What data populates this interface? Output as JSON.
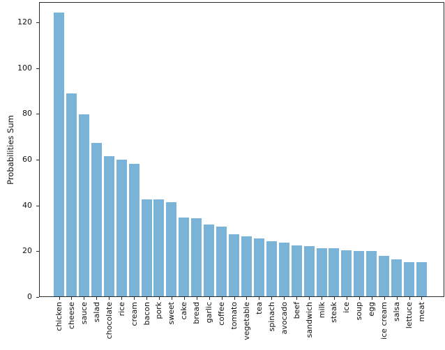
{
  "chart_data": {
    "type": "bar",
    "ylabel": "Probabilities Sum",
    "xlabel": "",
    "categories": [
      "chicken",
      "cheese",
      "sauce",
      "salad",
      "chocolate",
      "rice",
      "cream",
      "bacon",
      "pork",
      "sweet",
      "cake",
      "bread",
      "garlic",
      "coffee",
      "tomato",
      "vegetable",
      "tea",
      "spinach",
      "avocado",
      "beef",
      "sandwich",
      "milk",
      "steak",
      "ice",
      "soup",
      "egg",
      "ice cream",
      "salsa",
      "lettuce",
      "meat"
    ],
    "values": [
      124.0,
      88.6,
      79.5,
      67.0,
      61.2,
      59.7,
      57.9,
      42.4,
      42.3,
      41.2,
      34.4,
      34.1,
      31.4,
      30.6,
      27.2,
      26.3,
      25.3,
      24.1,
      23.5,
      22.1,
      22.0,
      21.1,
      21.0,
      20.1,
      19.9,
      19.8,
      17.8,
      16.2,
      14.9,
      14.8
    ],
    "yticks": [
      0,
      20,
      40,
      60,
      80,
      100,
      120
    ],
    "ylim": [
      0,
      128.8
    ],
    "x_tick_rotation": 90,
    "grid": false,
    "legend": "none",
    "bar_color": "#7ab3d8",
    "axis_color": "#2a2a2a",
    "text_color": "#111111"
  }
}
